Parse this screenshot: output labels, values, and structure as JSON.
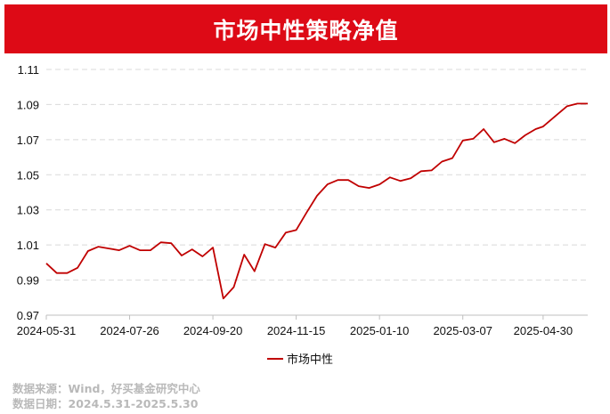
{
  "title": "市场中性策略净值",
  "footer": {
    "source": "数据来源：Wind，好买基金研究中心",
    "date": "数据日期：2024.5.31-2025.5.30"
  },
  "colors": {
    "title_bg": "#dd0a16",
    "line": "#c00000",
    "grid": "#d9d9d9",
    "footer_text": "#b9b9b9"
  },
  "chart_data": {
    "type": "line",
    "title": "市场中性策略净值",
    "ylim": [
      0.97,
      1.11
    ],
    "yticks": [
      "0.97",
      "0.99",
      "1.01",
      "1.03",
      "1.05",
      "1.07",
      "1.09",
      "1.11"
    ],
    "xticks": [
      "2024-05-31",
      "2024-07-26",
      "2024-09-20",
      "2024-11-15",
      "2025-01-10",
      "2025-03-07",
      "2025-04-30"
    ],
    "grid": "horizontal dashed",
    "legend": "bottom-center",
    "x": [
      "2024-05-31",
      "2024-06-07",
      "2024-06-14",
      "2024-06-21",
      "2024-06-28",
      "2024-07-05",
      "2024-07-12",
      "2024-07-19",
      "2024-07-26",
      "2024-08-02",
      "2024-08-09",
      "2024-08-16",
      "2024-08-23",
      "2024-08-30",
      "2024-09-06",
      "2024-09-13",
      "2024-09-20",
      "2024-09-27",
      "2024-10-04",
      "2024-10-11",
      "2024-10-18",
      "2024-10-25",
      "2024-11-01",
      "2024-11-08",
      "2024-11-15",
      "2024-11-22",
      "2024-11-29",
      "2024-12-06",
      "2024-12-13",
      "2024-12-20",
      "2024-12-27",
      "2025-01-03",
      "2025-01-10",
      "2025-01-17",
      "2025-01-24",
      "2025-01-31",
      "2025-02-07",
      "2025-02-14",
      "2025-02-21",
      "2025-02-28",
      "2025-03-07",
      "2025-03-14",
      "2025-03-21",
      "2025-03-28",
      "2025-04-04",
      "2025-04-11",
      "2025-04-18",
      "2025-04-25",
      "2025-04-30",
      "2025-05-09",
      "2025-05-16",
      "2025-05-23",
      "2025-05-30"
    ],
    "series": [
      {
        "name": "市场中性",
        "color": "#c00000",
        "values": [
          0.9995,
          0.994,
          0.994,
          0.997,
          1.0065,
          1.009,
          1.008,
          1.007,
          1.0095,
          1.007,
          1.007,
          1.0115,
          1.011,
          1.004,
          1.0075,
          1.0035,
          1.0085,
          0.9795,
          0.986,
          1.0045,
          0.995,
          1.0105,
          1.0085,
          1.017,
          1.0185,
          1.0285,
          1.038,
          1.0445,
          1.047,
          1.047,
          1.0435,
          1.0425,
          1.0445,
          1.0485,
          1.0465,
          1.048,
          1.052,
          1.0525,
          1.0575,
          1.0595,
          1.0695,
          1.0705,
          1.076,
          1.0685,
          1.0705,
          1.068,
          1.0725,
          1.076,
          1.0775,
          1.084,
          1.089,
          1.0905,
          1.0905
        ]
      }
    ]
  }
}
